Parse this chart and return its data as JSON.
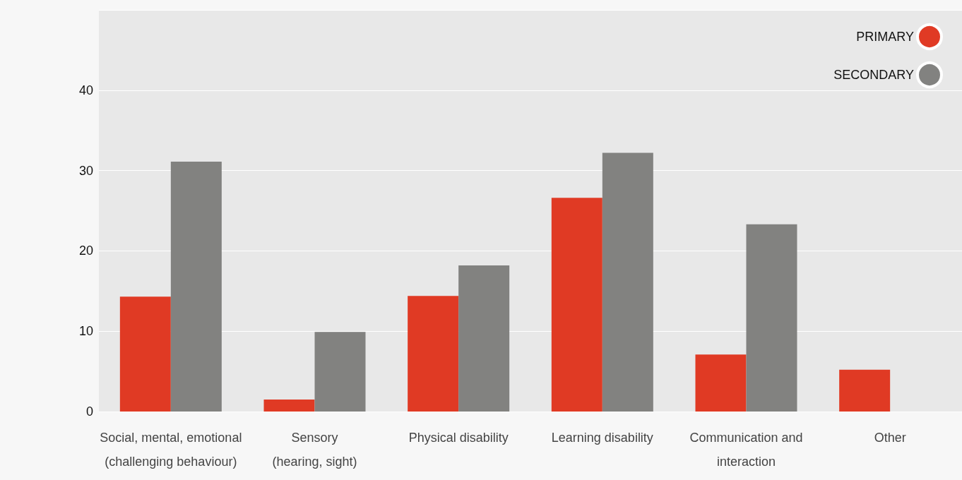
{
  "chart_data": {
    "type": "bar",
    "categories": [
      "Social, mental, emotional\n(challenging behaviour)",
      "Sensory\n(hearing, sight)",
      "Physical disability",
      "Learning disability",
      "Communication and\ninteraction",
      "Other"
    ],
    "series": [
      {
        "name": "PRIMARY",
        "color": "#e03a24",
        "values": [
          14.3,
          1.5,
          14.4,
          26.6,
          7.1,
          5.2
        ]
      },
      {
        "name": "SECONDARY",
        "color": "#828280",
        "values": [
          31.1,
          9.9,
          18.2,
          32.2,
          23.3,
          null
        ]
      }
    ],
    "ylim": [
      0,
      50
    ],
    "yticks": [
      0,
      10,
      20,
      30,
      40
    ],
    "grid": "y",
    "legend": "top right"
  }
}
